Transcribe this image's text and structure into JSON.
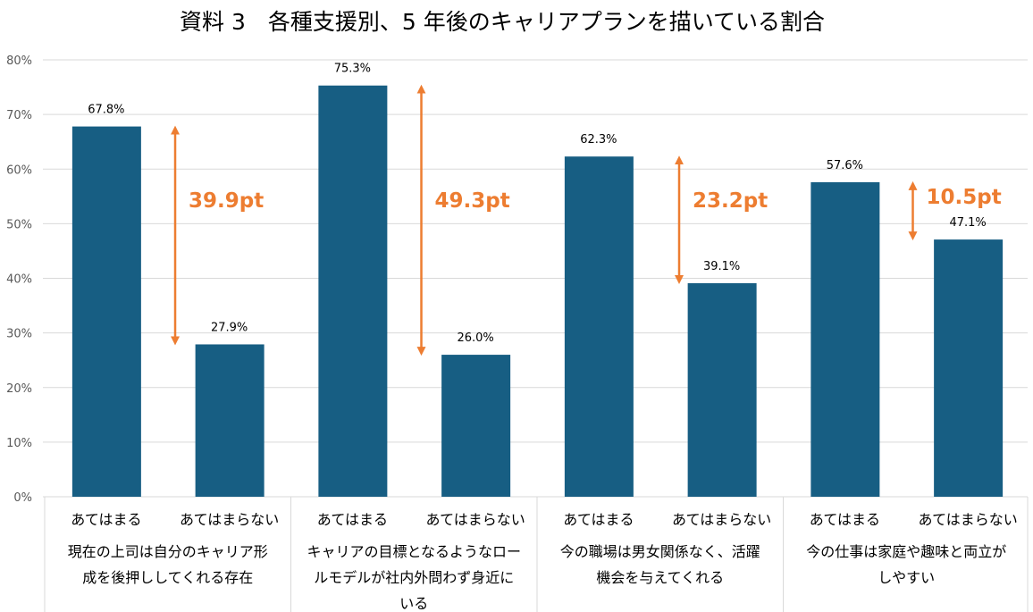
{
  "chart_data": {
    "type": "bar",
    "title": "資料 3　各種支援別、5 年後のキャリアプランを描いている割合",
    "ylim": [
      0,
      80
    ],
    "yticks": [
      "0%",
      "10%",
      "20%",
      "30%",
      "40%",
      "50%",
      "60%",
      "70%",
      "80%"
    ],
    "grid": true,
    "bar_color": "#175E83",
    "arrow_color": "#ED7D31",
    "groups": [
      {
        "label": "現在の上司は自分のキャリア形成を後押ししてくれる存在",
        "label_lines": [
          "現在の上司は自分のキャリア形",
          "成を後押ししてくれる存在"
        ],
        "categories": [
          "あてはまる",
          "あてはまらない"
        ],
        "values": [
          67.8,
          27.9
        ],
        "value_labels": [
          "67.8%",
          "27.9%"
        ],
        "diff_label": "39.9pt"
      },
      {
        "label": "キャリアの目標となるようなロールモデルが社内外問わず身近にいる",
        "label_lines": [
          "キャリアの目標となるようなロー",
          "ルモデルが社内外問わず身近に",
          "いる"
        ],
        "categories": [
          "あてはまる",
          "あてはまらない"
        ],
        "values": [
          75.3,
          26.0
        ],
        "value_labels": [
          "75.3%",
          "26.0%"
        ],
        "diff_label": "49.3pt"
      },
      {
        "label": "今の職場は男女関係なく、活躍機会を与えてくれる",
        "label_lines": [
          "今の職場は男女関係なく、活躍",
          "機会を与えてくれる"
        ],
        "categories": [
          "あてはまる",
          "あてはまらない"
        ],
        "values": [
          62.3,
          39.1
        ],
        "value_labels": [
          "62.3%",
          "39.1%"
        ],
        "diff_label": "23.2pt"
      },
      {
        "label": "今の仕事は家庭や趣味と両立がしやすい",
        "label_lines": [
          "今の仕事は家庭や趣味と両立が",
          "しやすい"
        ],
        "categories": [
          "あてはまる",
          "あてはまらない"
        ],
        "values": [
          57.6,
          47.1
        ],
        "value_labels": [
          "57.6%",
          "47.1%"
        ],
        "diff_label": "10.5pt"
      }
    ]
  }
}
